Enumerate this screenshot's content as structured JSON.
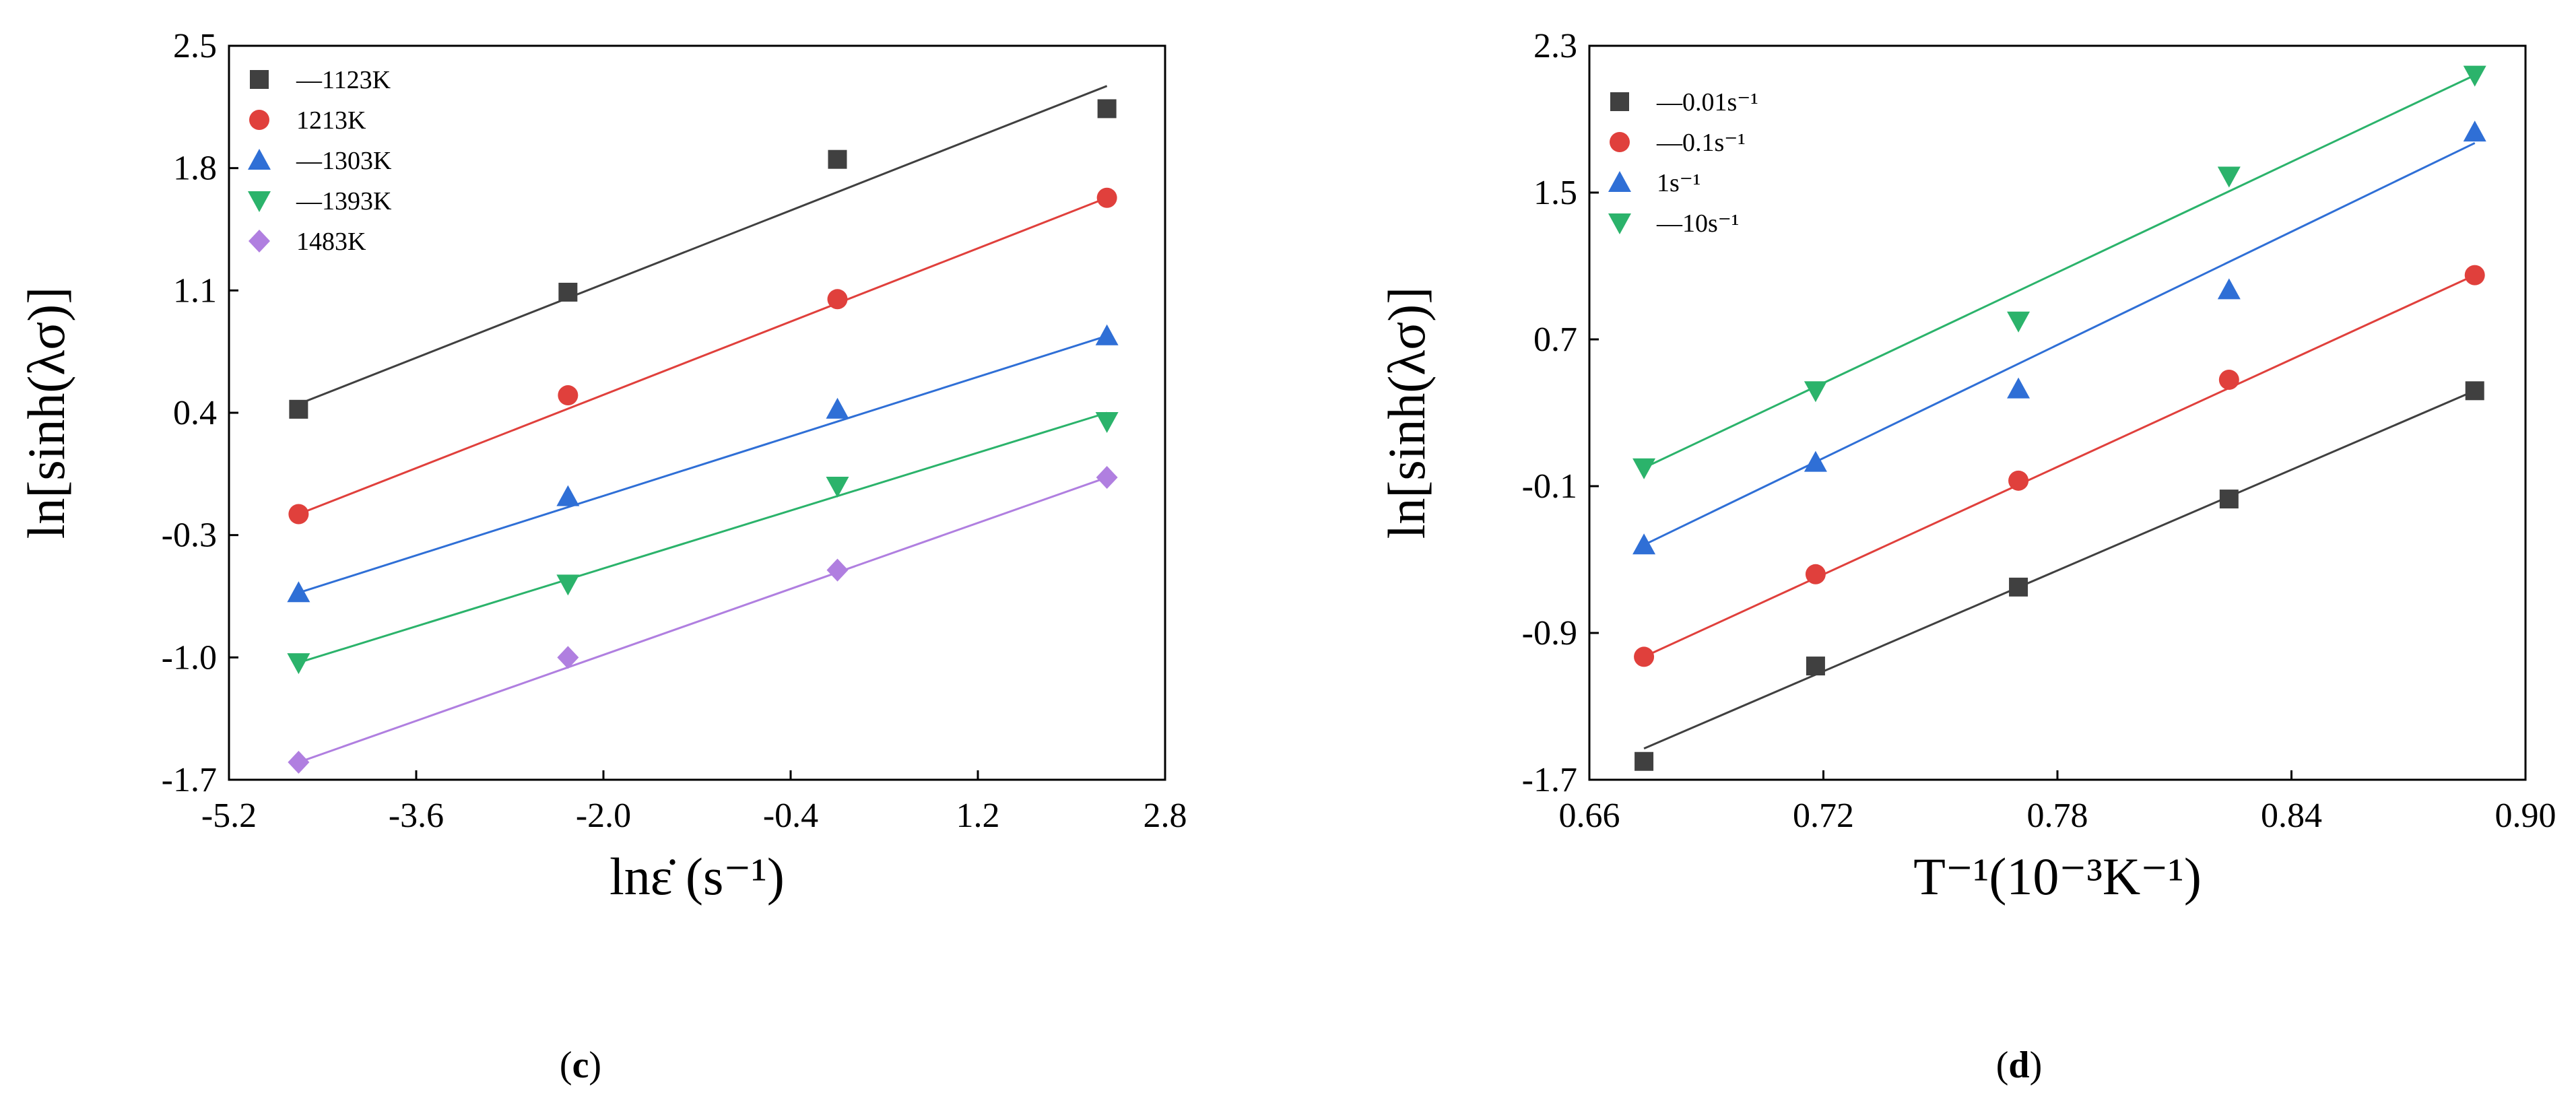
{
  "figure": {
    "panel_c_label": "c",
    "panel_d_label": "d"
  },
  "chart_data": [
    {
      "type": "scatter",
      "panel": "c",
      "title": "",
      "ylabel": "ln[sinh(λσ)]",
      "xlabel": "lnε̇ (s⁻¹)",
      "xlim": [
        -5.2,
        2.8
      ],
      "ylim": [
        -1.7,
        2.5
      ],
      "xticks": [
        "-5.2",
        "-3.6",
        "-2.0",
        "-0.4",
        "1.2",
        "2.8"
      ],
      "yticks": [
        "-1.7",
        "-1.0",
        "-0.3",
        "0.4",
        "1.1",
        "1.8",
        "2.5"
      ],
      "legend_position": "top-left",
      "x": [
        -4.605,
        -2.303,
        0,
        2.303
      ],
      "series": [
        {
          "name": "—1123K",
          "color": "#404040",
          "marker": "square",
          "values": [
            0.42,
            1.09,
            1.85,
            2.14
          ],
          "fit": [
            0.45,
            2.27
          ]
        },
        {
          "name": "1213K",
          "color": "#e0403c",
          "marker": "circle",
          "values": [
            -0.18,
            0.5,
            1.05,
            1.63
          ],
          "fit": [
            -0.18,
            1.63
          ]
        },
        {
          "name": "—1303K",
          "color": "#2f6fd6",
          "marker": "triangle-up",
          "values": [
            -0.63,
            -0.08,
            0.42,
            0.84
          ],
          "fit": [
            -0.63,
            0.84
          ]
        },
        {
          "name": "—1393K",
          "color": "#2bb36b",
          "marker": "triangle-down",
          "values": [
            -1.03,
            -0.58,
            -0.02,
            0.35
          ],
          "fit": [
            -1.03,
            0.4
          ]
        },
        {
          "name": "1483K",
          "color": "#b07fe0",
          "marker": "diamond",
          "values": [
            -1.6,
            -1.0,
            -0.5,
            0.03
          ],
          "fit": [
            -1.6,
            0.03
          ]
        }
      ]
    },
    {
      "type": "scatter",
      "panel": "d",
      "title": "",
      "ylabel": "ln[sinh(λσ)]",
      "xlabel": "T⁻¹(10⁻³K⁻¹)",
      "xlim": [
        0.66,
        0.9
      ],
      "ylim": [
        -1.7,
        2.3
      ],
      "xticks": [
        "0.66",
        "0.72",
        "0.78",
        "0.84",
        "0.90"
      ],
      "yticks": [
        "-1.7",
        "-0.9",
        "-0.1",
        "0.7",
        "1.5",
        "2.3"
      ],
      "legend_position": "top-left",
      "x": [
        0.674,
        0.718,
        0.77,
        0.824,
        0.887
      ],
      "series": [
        {
          "name": "—0.01s⁻¹",
          "color": "#404040",
          "marker": "square",
          "values": [
            -1.6,
            -1.08,
            -0.65,
            -0.17,
            0.42
          ],
          "fit": [
            -1.53,
            0.42
          ]
        },
        {
          "name": "—0.1s⁻¹",
          "color": "#e0403c",
          "marker": "circle",
          "values": [
            -1.03,
            -0.58,
            -0.07,
            0.48,
            1.05
          ],
          "fit": [
            -1.03,
            1.05
          ]
        },
        {
          "name": "1s⁻¹",
          "color": "#2f6fd6",
          "marker": "triangle-up",
          "values": [
            -0.42,
            0.03,
            0.43,
            0.97,
            1.83
          ],
          "fit": [
            -0.42,
            1.77
          ]
        },
        {
          "name": "—10s⁻¹",
          "color": "#2bb36b",
          "marker": "triangle-down",
          "values": [
            0.0,
            0.42,
            0.8,
            1.59,
            2.14
          ],
          "fit": [
            0.0,
            2.14
          ]
        }
      ]
    }
  ]
}
